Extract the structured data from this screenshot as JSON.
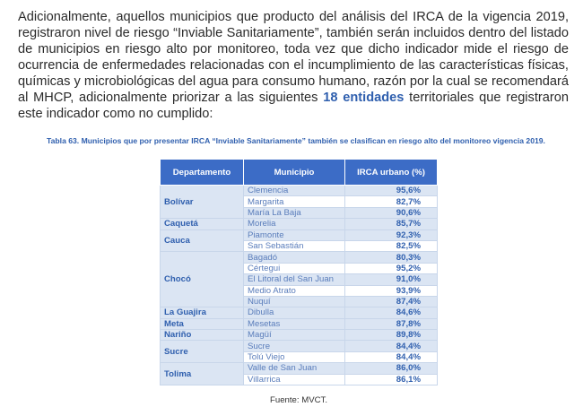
{
  "paragraph": {
    "text": "Adicionalmente, aquellos municipios que producto del análisis del IRCA de la vigencia 2019, registraron nivel de riesgo “Inviable Sanitariamente”, también serán incluidos dentro del listado de municipios en riesgo alto por monitoreo, toda vez que dicho indicador mide el riesgo de ocurrencia de enfermedades relacionadas con el incumplimiento de las características físicas, químicas y microbiológicas del agua para consumo humano, razón por la cual se recomendará al MHCP, adicionalmente priorizar a las siguientes",
    "highlight": "18 entidades",
    "tail": "territoriales que registraron este indicador como no cumplido:"
  },
  "caption": "Tabla 63. Municipios que por presentar IRCA “Inviable Sanitariamente” también se clasifican en riesgo alto del monitoreo vigencia 2019.",
  "table": {
    "headers": [
      "Departamento",
      "Municipio",
      "IRCA urbano (%)"
    ],
    "groups": [
      {
        "departamento": "Bolívar",
        "rows": [
          [
            "Clemencia",
            "95,6%"
          ],
          [
            "Margarita",
            "82,7%"
          ],
          [
            "María La Baja",
            "90,6%"
          ]
        ]
      },
      {
        "departamento": "Caquetá",
        "rows": [
          [
            "Morelia",
            "85,7%"
          ]
        ]
      },
      {
        "departamento": "Cauca",
        "rows": [
          [
            "Piamonte",
            "92,3%"
          ],
          [
            "San Sebastián",
            "82,5%"
          ]
        ]
      },
      {
        "departamento": "Chocó",
        "rows": [
          [
            "Bagadó",
            "80,3%"
          ],
          [
            "Cértegui",
            "95,2%"
          ],
          [
            "El Litoral del San Juan",
            "91,0%"
          ],
          [
            "Medio Atrato",
            "93,9%"
          ],
          [
            "Nuquí",
            "87,4%"
          ]
        ]
      },
      {
        "departamento": "La Guajira",
        "rows": [
          [
            "Dibulla",
            "84,6%"
          ]
        ]
      },
      {
        "departamento": "Meta",
        "rows": [
          [
            "Mesetas",
            "87,8%"
          ]
        ]
      },
      {
        "departamento": "Nariño",
        "rows": [
          [
            "Magüí",
            "89,8%"
          ]
        ]
      },
      {
        "departamento": "Sucre",
        "rows": [
          [
            "Sucre",
            "84,4%"
          ],
          [
            "Tolú Viejo",
            "84,4%"
          ]
        ]
      },
      {
        "departamento": "Tolima",
        "rows": [
          [
            "Valle de San Juan",
            "86,0%"
          ],
          [
            "Villarrica",
            "86,1%"
          ]
        ]
      }
    ]
  },
  "source": "Fuente: MVCT."
}
